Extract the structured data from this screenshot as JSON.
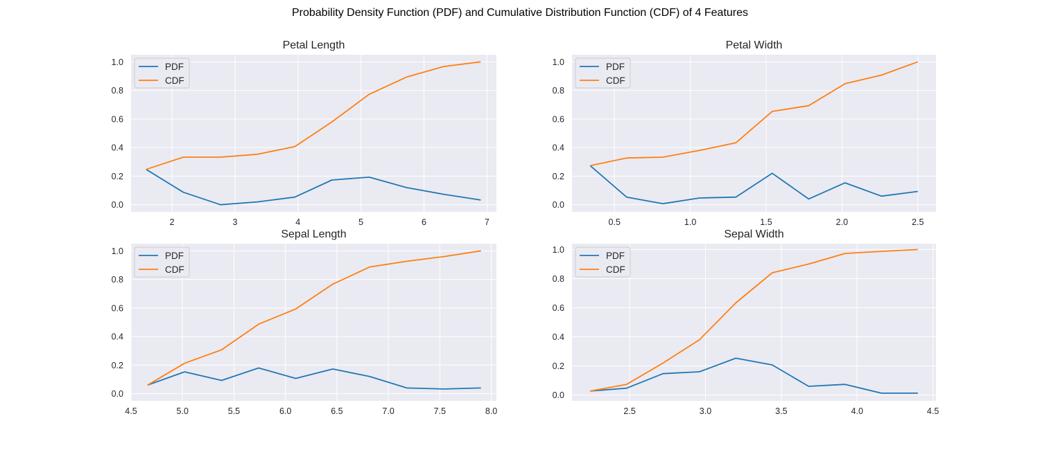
{
  "figure": {
    "title": "Probability Density Function (PDF) and Cumulative Distribution Function (CDF) of 4 Features"
  },
  "colors": {
    "pdf": "#1f77b4",
    "cdf": "#ff7f0e",
    "plot_bg": "#eaeaf2",
    "grid": "#ffffff"
  },
  "chart_data": [
    {
      "type": "line",
      "title": "Petal Length",
      "xlim": [
        1.35,
        7.15
      ],
      "ylim": [
        -0.05,
        1.05
      ],
      "xticks": [
        2,
        3,
        4,
        5,
        6,
        7
      ],
      "xtick_labels": [
        "2",
        "3",
        "4",
        "5",
        "6",
        "7"
      ],
      "yticks": [
        0.0,
        0.2,
        0.4,
        0.6,
        0.8,
        1.0
      ],
      "ytick_labels": [
        "0.0",
        "0.2",
        "0.4",
        "0.6",
        "0.8",
        "1.0"
      ],
      "grid": true,
      "legend": "upper-left",
      "x": [
        1.59,
        2.18,
        2.77,
        3.36,
        3.95,
        4.54,
        5.13,
        5.72,
        6.31,
        6.9
      ],
      "series": [
        {
          "name": "PDF",
          "values": [
            0.247,
            0.087,
            0.0,
            0.02,
            0.053,
            0.173,
            0.193,
            0.12,
            0.073,
            0.033
          ]
        },
        {
          "name": "CDF",
          "values": [
            0.247,
            0.333,
            0.333,
            0.353,
            0.407,
            0.58,
            0.773,
            0.893,
            0.967,
            1.0
          ]
        }
      ]
    },
    {
      "type": "line",
      "title": "Petal Width",
      "xlim": [
        0.22,
        2.62
      ],
      "ylim": [
        -0.05,
        1.05
      ],
      "xticks": [
        0.5,
        1.0,
        1.5,
        2.0,
        2.5
      ],
      "xtick_labels": [
        "0.5",
        "1.0",
        "1.5",
        "2.0",
        "2.5"
      ],
      "yticks": [
        0.0,
        0.2,
        0.4,
        0.6,
        0.8,
        1.0
      ],
      "ytick_labels": [
        "0.0",
        "0.2",
        "0.4",
        "0.6",
        "0.8",
        "1.0"
      ],
      "grid": true,
      "legend": "upper-left",
      "x": [
        0.34,
        0.58,
        0.82,
        1.06,
        1.3,
        1.54,
        1.78,
        2.02,
        2.26,
        2.5
      ],
      "series": [
        {
          "name": "PDF",
          "values": [
            0.273,
            0.053,
            0.007,
            0.047,
            0.053,
            0.22,
            0.04,
            0.153,
            0.06,
            0.093
          ]
        },
        {
          "name": "CDF",
          "values": [
            0.273,
            0.327,
            0.333,
            0.38,
            0.433,
            0.653,
            0.693,
            0.847,
            0.907,
            1.0
          ]
        }
      ]
    },
    {
      "type": "line",
      "title": "Sepal Length",
      "xlim": [
        4.5,
        8.05
      ],
      "ylim": [
        -0.05,
        1.05
      ],
      "xticks": [
        4.5,
        5.0,
        5.5,
        6.0,
        6.5,
        7.0,
        7.5,
        8.0
      ],
      "xtick_labels": [
        "4.5",
        "5.0",
        "5.5",
        "6.0",
        "6.5",
        "7.0",
        "7.5",
        "8.0"
      ],
      "yticks": [
        0.0,
        0.2,
        0.4,
        0.6,
        0.8,
        1.0
      ],
      "ytick_labels": [
        "0.0",
        "0.2",
        "0.4",
        "0.6",
        "0.8",
        "1.0"
      ],
      "grid": true,
      "legend": "upper-left",
      "x": [
        4.66,
        5.02,
        5.38,
        5.74,
        6.1,
        6.46,
        6.82,
        7.18,
        7.54,
        7.9
      ],
      "series": [
        {
          "name": "PDF",
          "values": [
            0.06,
            0.153,
            0.093,
            0.18,
            0.107,
            0.173,
            0.12,
            0.04,
            0.033,
            0.04
          ]
        },
        {
          "name": "CDF",
          "values": [
            0.06,
            0.213,
            0.307,
            0.487,
            0.593,
            0.767,
            0.887,
            0.927,
            0.96,
            1.0
          ]
        }
      ]
    },
    {
      "type": "line",
      "title": "Sepal Width",
      "xlim": [
        2.12,
        4.52
      ],
      "ylim": [
        -0.04,
        1.04
      ],
      "xticks": [
        2.5,
        3.0,
        3.5,
        4.0,
        4.5
      ],
      "xtick_labels": [
        "2.5",
        "3.0",
        "3.5",
        "4.0",
        "4.5"
      ],
      "yticks": [
        0.0,
        0.2,
        0.4,
        0.6,
        0.8,
        1.0
      ],
      "ytick_labels": [
        "0.0",
        "0.2",
        "0.4",
        "0.6",
        "0.8",
        "1.0"
      ],
      "grid": true,
      "legend": "upper-left",
      "x": [
        2.24,
        2.48,
        2.72,
        2.96,
        3.2,
        3.44,
        3.68,
        3.92,
        4.16,
        4.4
      ],
      "series": [
        {
          "name": "PDF",
          "values": [
            0.027,
            0.047,
            0.147,
            0.16,
            0.253,
            0.207,
            0.06,
            0.073,
            0.013,
            0.013
          ]
        },
        {
          "name": "CDF",
          "values": [
            0.027,
            0.073,
            0.22,
            0.38,
            0.633,
            0.84,
            0.9,
            0.973,
            0.987,
            1.0
          ]
        }
      ]
    }
  ]
}
